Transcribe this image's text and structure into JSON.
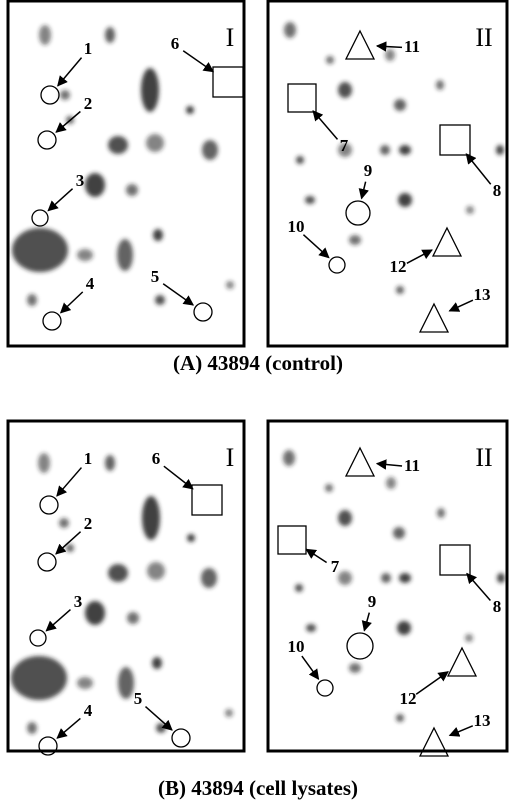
{
  "panels": [
    {
      "caption": "(A) 43894 (control)",
      "gels": [
        {
          "label": "I",
          "markers": [
            "1",
            "2",
            "3",
            "4",
            "5",
            "6"
          ]
        },
        {
          "label": "II",
          "markers": [
            "7",
            "8",
            "9",
            "10",
            "11",
            "12",
            "13"
          ]
        }
      ]
    },
    {
      "caption": "(B) 43894 (cell lysates)",
      "gels": [
        {
          "label": "I",
          "markers": [
            "1",
            "2",
            "3",
            "4",
            "5",
            "6"
          ]
        },
        {
          "label": "II",
          "markers": [
            "7",
            "8",
            "9",
            "10",
            "11",
            "12",
            "13"
          ]
        }
      ]
    }
  ]
}
